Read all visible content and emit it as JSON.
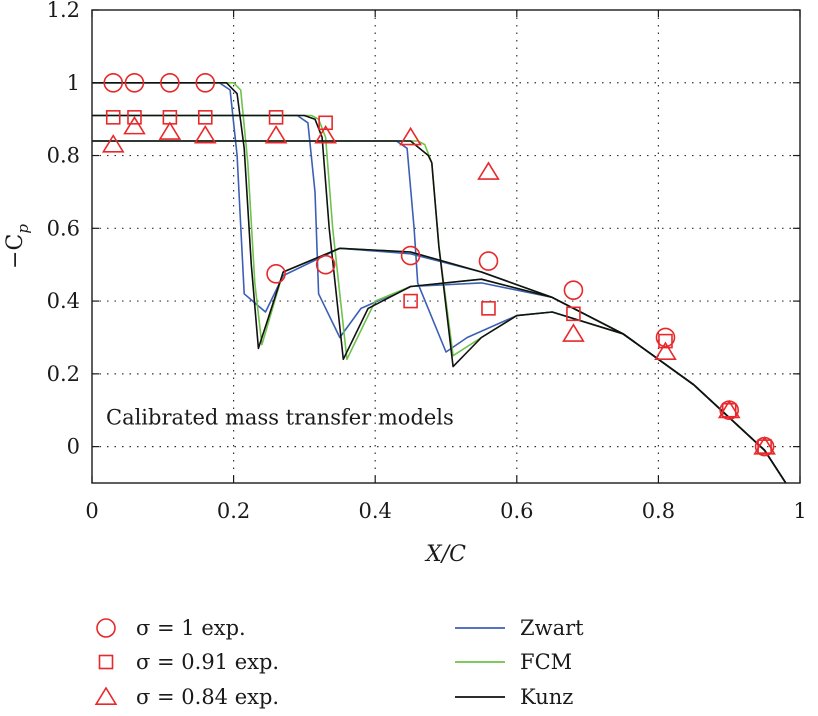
{
  "chart_data": {
    "type": "line",
    "xlabel": "X/C",
    "ylabel": "−C",
    "ylabel_sub": "p",
    "xlim": [
      0,
      1
    ],
    "ylim": [
      -0.1,
      1.2
    ],
    "x_ticks": [
      "0",
      "0.2",
      "0.4",
      "0.6",
      "0.8",
      "1"
    ],
    "y_ticks": [
      "1.2",
      "1",
      "0.8",
      "0.6",
      "0.4",
      "0.2",
      "0"
    ],
    "grid": "dotted",
    "annotation": "Calibrated mass transfer models",
    "experimental_series": [
      {
        "name": "σ = 1 exp.",
        "marker": "circle",
        "color": "#e8292b",
        "x": [
          0.03,
          0.06,
          0.11,
          0.16,
          0.26,
          0.33,
          0.45,
          0.56,
          0.68,
          0.81,
          0.9,
          0.95
        ],
        "y": [
          1.0,
          1.0,
          1.0,
          1.0,
          0.475,
          0.5,
          0.525,
          0.51,
          0.43,
          0.3,
          0.1,
          0.0
        ]
      },
      {
        "name": "σ = 0.91 exp.",
        "marker": "square",
        "color": "#e8292b",
        "x": [
          0.03,
          0.06,
          0.11,
          0.16,
          0.26,
          0.33,
          0.45,
          0.56,
          0.68,
          0.81,
          0.9,
          0.95
        ],
        "y": [
          0.905,
          0.905,
          0.905,
          0.905,
          0.905,
          0.89,
          0.4,
          0.38,
          0.365,
          0.29,
          0.1,
          0.0
        ]
      },
      {
        "name": "σ = 0.84 exp.",
        "marker": "triangle",
        "color": "#e8292b",
        "x": [
          0.03,
          0.06,
          0.11,
          0.16,
          0.26,
          0.33,
          0.45,
          0.56,
          0.68,
          0.81,
          0.9,
          0.95
        ],
        "y": [
          0.83,
          0.88,
          0.865,
          0.855,
          0.855,
          0.855,
          0.85,
          0.755,
          0.31,
          0.26,
          0.1,
          0.0
        ]
      }
    ],
    "model_series": [
      {
        "name": "Zwart",
        "color": "#3c5fb5",
        "curves": [
          {
            "x": [
              0.0,
              0.18,
              0.195,
              0.205,
              0.215,
              0.245,
              0.27,
              0.35,
              0.45,
              0.55,
              0.65,
              0.75,
              0.85,
              0.95,
              0.98
            ],
            "y": [
              1.0,
              1.0,
              0.98,
              0.8,
              0.42,
              0.37,
              0.47,
              0.545,
              0.53,
              0.48,
              0.41,
              0.31,
              0.17,
              -0.01,
              -0.1
            ]
          },
          {
            "x": [
              0.0,
              0.29,
              0.305,
              0.315,
              0.32,
              0.35,
              0.38,
              0.45,
              0.55,
              0.65,
              0.75,
              0.85,
              0.95,
              0.98
            ],
            "y": [
              0.91,
              0.91,
              0.89,
              0.7,
              0.42,
              0.3,
              0.38,
              0.44,
              0.45,
              0.41,
              0.31,
              0.17,
              -0.01,
              -0.1
            ]
          },
          {
            "x": [
              0.0,
              0.43,
              0.445,
              0.455,
              0.46,
              0.5,
              0.53,
              0.6,
              0.65,
              0.75,
              0.85,
              0.95,
              0.98
            ],
            "y": [
              0.84,
              0.84,
              0.82,
              0.6,
              0.45,
              0.26,
              0.3,
              0.36,
              0.37,
              0.31,
              0.17,
              -0.01,
              -0.1
            ]
          }
        ]
      },
      {
        "name": "FCM",
        "color": "#6fc34a",
        "curves": [
          {
            "x": [
              0.0,
              0.2,
              0.21,
              0.22,
              0.23,
              0.24,
              0.27,
              0.35,
              0.45,
              0.55,
              0.65,
              0.75,
              0.85,
              0.95,
              0.98
            ],
            "y": [
              1.0,
              1.0,
              0.98,
              0.78,
              0.45,
              0.28,
              0.48,
              0.545,
              0.535,
              0.48,
              0.41,
              0.31,
              0.17,
              -0.01,
              -0.1
            ]
          },
          {
            "x": [
              0.0,
              0.31,
              0.32,
              0.33,
              0.34,
              0.36,
              0.4,
              0.45,
              0.55,
              0.65,
              0.75,
              0.85,
              0.95,
              0.98
            ],
            "y": [
              0.91,
              0.91,
              0.9,
              0.85,
              0.6,
              0.24,
              0.4,
              0.44,
              0.46,
              0.41,
              0.31,
              0.17,
              -0.01,
              -0.1
            ]
          },
          {
            "x": [
              0.0,
              0.46,
              0.47,
              0.48,
              0.49,
              0.51,
              0.55,
              0.6,
              0.65,
              0.75,
              0.85,
              0.95,
              0.98
            ],
            "y": [
              0.84,
              0.84,
              0.83,
              0.78,
              0.55,
              0.25,
              0.3,
              0.36,
              0.37,
              0.31,
              0.17,
              -0.01,
              -0.1
            ]
          }
        ]
      },
      {
        "name": "Kunz",
        "color": "#111111",
        "curves": [
          {
            "x": [
              0.0,
              0.19,
              0.205,
              0.215,
              0.225,
              0.235,
              0.27,
              0.35,
              0.45,
              0.55,
              0.65,
              0.75,
              0.85,
              0.95,
              0.98
            ],
            "y": [
              1.0,
              1.0,
              0.97,
              0.82,
              0.5,
              0.27,
              0.48,
              0.545,
              0.535,
              0.48,
              0.41,
              0.31,
              0.17,
              -0.01,
              -0.1
            ]
          },
          {
            "x": [
              0.0,
              0.3,
              0.315,
              0.325,
              0.335,
              0.355,
              0.39,
              0.45,
              0.55,
              0.65,
              0.75,
              0.85,
              0.95,
              0.98
            ],
            "y": [
              0.91,
              0.91,
              0.9,
              0.85,
              0.6,
              0.24,
              0.38,
              0.44,
              0.46,
              0.41,
              0.31,
              0.17,
              -0.01,
              -0.1
            ]
          },
          {
            "x": [
              0.0,
              0.45,
              0.475,
              0.48,
              0.49,
              0.51,
              0.55,
              0.6,
              0.65,
              0.75,
              0.85,
              0.95,
              0.98
            ],
            "y": [
              0.84,
              0.84,
              0.8,
              0.78,
              0.55,
              0.22,
              0.3,
              0.36,
              0.37,
              0.31,
              0.17,
              -0.01,
              -0.1
            ]
          }
        ]
      }
    ]
  }
}
